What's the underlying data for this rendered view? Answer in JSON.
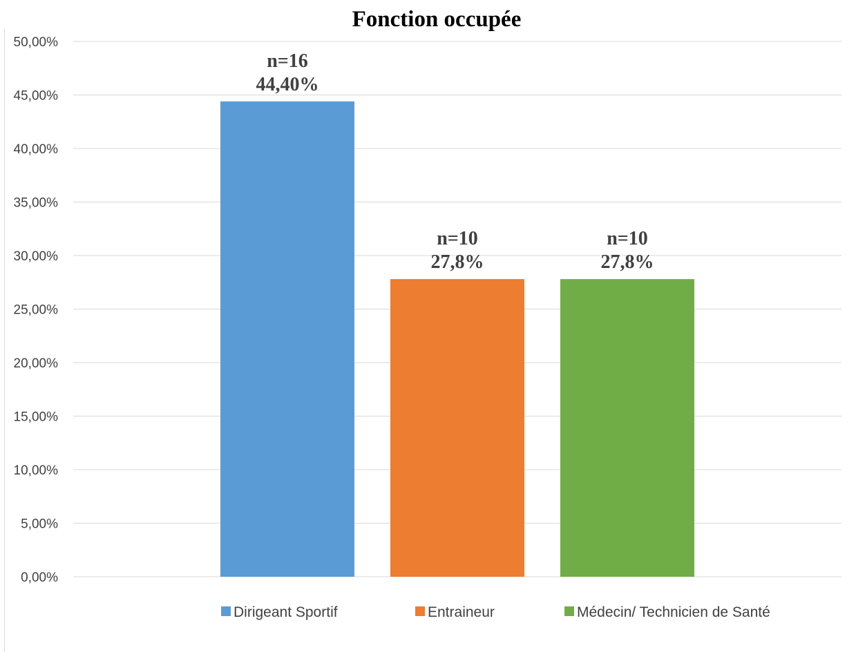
{
  "chart_data": {
    "type": "bar",
    "title": "Fonction occupée",
    "xlabel": "",
    "ylabel": "",
    "ylim": [
      0,
      50
    ],
    "yticks": [
      "0,00%",
      "5,00%",
      "10,00%",
      "15,00%",
      "20,00%",
      "25,00%",
      "30,00%",
      "35,00%",
      "40,00%",
      "45,00%",
      "50,00%"
    ],
    "grid": true,
    "legend_position": "bottom",
    "categories": [
      "Dirigeant Sportif",
      "Entraineur",
      "Médecin/ Technicien de Santé"
    ],
    "values": [
      44.4,
      27.8,
      27.8
    ],
    "colors": [
      "#5b9bd5",
      "#ed7d31",
      "#70ad47"
    ],
    "data_labels": [
      {
        "n": "n=16",
        "pct": "44,40%"
      },
      {
        "n": "n=10",
        "pct": "27,8%"
      },
      {
        "n": "n=10",
        "pct": "27,8%"
      }
    ]
  }
}
